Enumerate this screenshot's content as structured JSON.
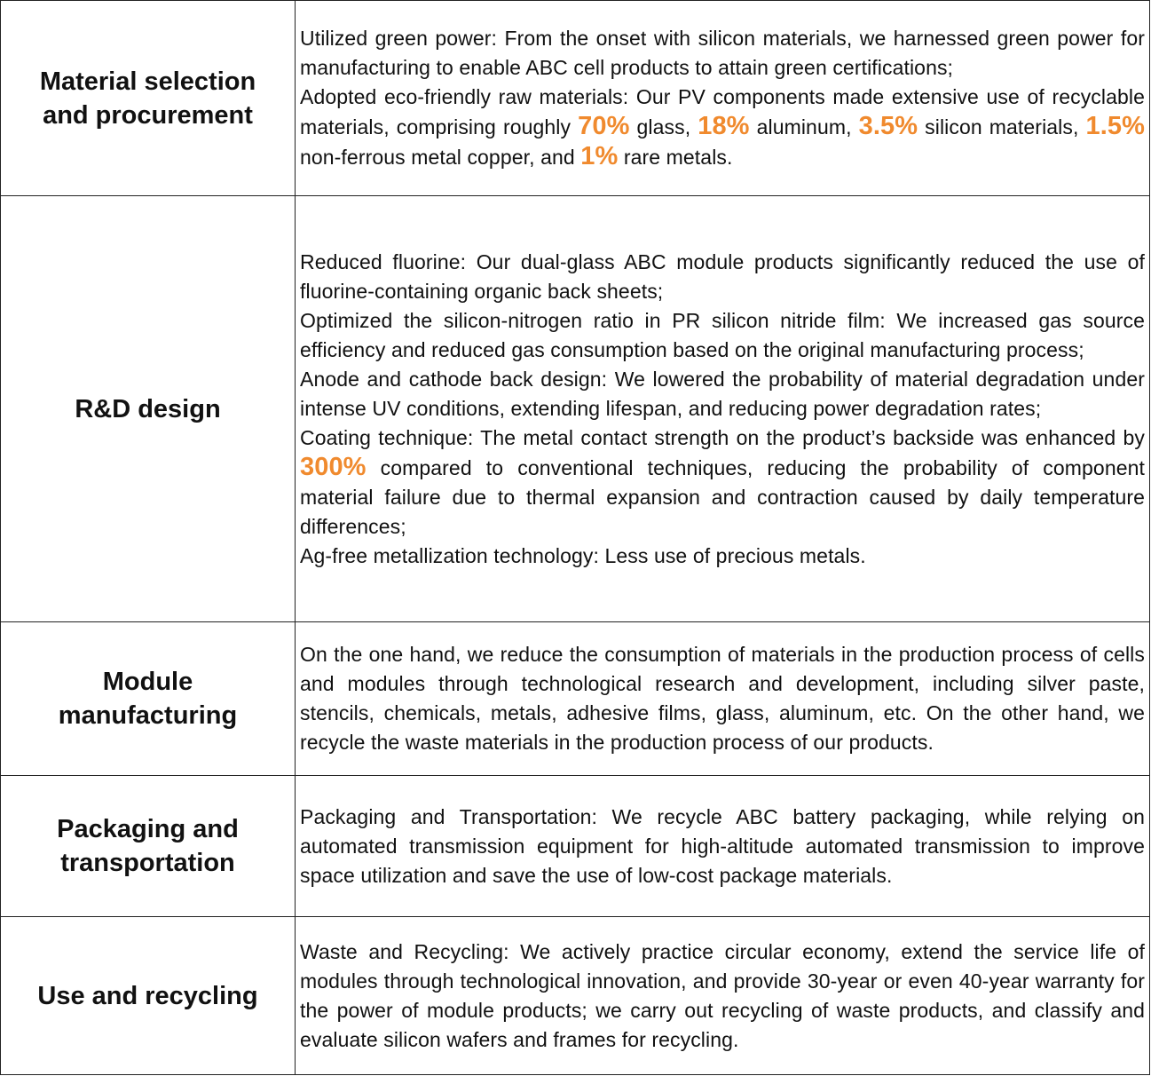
{
  "highlight_color": "#f08a2e",
  "rows": [
    {
      "stage": "Material selection and procurement",
      "paragraphs": [
        {
          "segments": [
            {
              "text": "Utilized green power: From the onset with silicon materials, we harnessed green power for manufacturing to enable ABC cell products to attain green certifications;"
            }
          ]
        },
        {
          "segments": [
            {
              "text": "Adopted eco-friendly raw materials: Our PV components made extensive use of recyclable materials, comprising roughly "
            },
            {
              "text": "70%",
              "highlight": true
            },
            {
              "text": " glass, "
            },
            {
              "text": "18%",
              "highlight": true
            },
            {
              "text": " aluminum, "
            },
            {
              "text": "3.5%",
              "highlight": true
            },
            {
              "text": " silicon materials, "
            },
            {
              "text": "1.5%",
              "highlight": true
            },
            {
              "text": " non-ferrous metal copper, and "
            },
            {
              "text": "1%",
              "highlight": true
            },
            {
              "text": " rare metals."
            }
          ]
        }
      ]
    },
    {
      "stage": "R&D design",
      "paragraphs": [
        {
          "segments": [
            {
              "text": "Reduced fluorine: Our dual-glass ABC module products significantly reduced the use of fluorine-containing organic back sheets;"
            }
          ]
        },
        {
          "segments": [
            {
              "text": "Optimized the silicon-nitrogen ratio in PR silicon nitride film:  We increased gas source efficiency and reduced gas consumption based on the original manufacturing process;"
            }
          ]
        },
        {
          "segments": [
            {
              "text": "Anode and cathode back design: We lowered the probability of material degradation under intense UV conditions, extending lifespan, and reducing power degradation rates;"
            }
          ]
        },
        {
          "segments": [
            {
              "text": "Coating technique: The metal contact strength on the product’s backside was enhanced by "
            },
            {
              "text": "300%",
              "highlight": true
            },
            {
              "text": " compared to conventional techniques, reducing the probability of component material failure due to thermal expansion and contraction caused by daily temperature differences;"
            }
          ]
        },
        {
          "segments": [
            {
              "text": "Ag-free metallization technology: Less use of precious metals."
            }
          ]
        }
      ]
    },
    {
      "stage": "Module manufacturing",
      "paragraphs": [
        {
          "segments": [
            {
              "text": "On the one hand, we reduce the consumption of materials in the production process of cells and modules through technological research and development, including silver paste, stencils, chemicals, metals, adhesive films, glass, aluminum, etc. On the other hand, we recycle the waste materials in the production process of our products."
            }
          ]
        }
      ]
    },
    {
      "stage": "Packaging and transportation",
      "paragraphs": [
        {
          "segments": [
            {
              "text": "Packaging and Transportation: We recycle ABC battery packaging, while relying on automated transmission equipment for high-altitude automated transmission to improve space utilization and save the use of low-cost package materials."
            }
          ]
        }
      ]
    },
    {
      "stage": "Use and recycling",
      "paragraphs": [
        {
          "segments": [
            {
              "text": "Waste and Recycling: We actively practice circular economy, extend the service life of modules through technological innovation, and provide 30-year or even 40-year warranty for the power of module products; we carry out recycling of waste products, and classify and evaluate silicon wafers and frames for recycling."
            }
          ]
        }
      ]
    }
  ]
}
